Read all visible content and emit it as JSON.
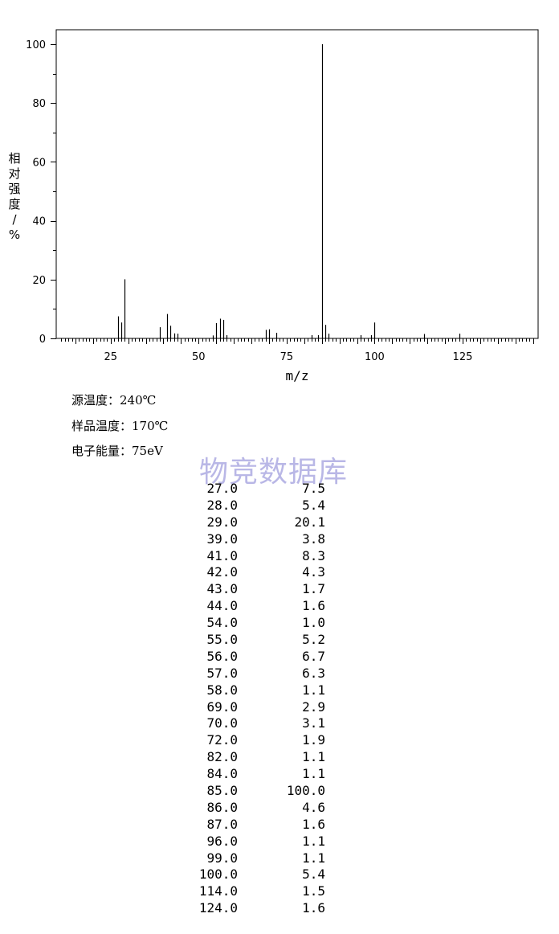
{
  "chart_data": {
    "type": "bar",
    "title": "",
    "xlabel": "m/z",
    "ylabel": "相对强度/%",
    "xlim": [
      10,
      146
    ],
    "ylim": [
      0,
      105
    ],
    "xticks": [
      25,
      50,
      75,
      100,
      125
    ],
    "yticks": [
      0,
      20,
      40,
      60,
      80,
      100
    ],
    "grid": false,
    "x": [
      27,
      28,
      29,
      39,
      41,
      42,
      43,
      44,
      54,
      55,
      56,
      57,
      58,
      69,
      70,
      72,
      82,
      84,
      85,
      86,
      87,
      96,
      99,
      100,
      114,
      124
    ],
    "values": [
      7.5,
      5.4,
      20.1,
      3.8,
      8.3,
      4.3,
      1.7,
      1.6,
      1.0,
      5.2,
      6.7,
      6.3,
      1.1,
      2.9,
      3.1,
      1.9,
      1.1,
      1.1,
      100.0,
      4.6,
      1.6,
      1.1,
      1.1,
      5.4,
      1.5,
      1.6
    ]
  },
  "axis": {
    "xlabel": "m/z",
    "ylabel_chars": [
      "相",
      "对",
      "强",
      "度",
      "/",
      "%"
    ]
  },
  "conditions": {
    "source_temp": "源温度：240℃",
    "sample_temp": "样品温度：170℃",
    "electron_energy": "电子能量：75eV"
  },
  "watermark": "物竞数据库",
  "peak_table": [
    [
      "27.0",
      "7.5"
    ],
    [
      "28.0",
      "5.4"
    ],
    [
      "29.0",
      "20.1"
    ],
    [
      "39.0",
      "3.8"
    ],
    [
      "41.0",
      "8.3"
    ],
    [
      "42.0",
      "4.3"
    ],
    [
      "43.0",
      "1.7"
    ],
    [
      "44.0",
      "1.6"
    ],
    [
      "54.0",
      "1.0"
    ],
    [
      "55.0",
      "5.2"
    ],
    [
      "56.0",
      "6.7"
    ],
    [
      "57.0",
      "6.3"
    ],
    [
      "58.0",
      "1.1"
    ],
    [
      "69.0",
      "2.9"
    ],
    [
      "70.0",
      "3.1"
    ],
    [
      "72.0",
      "1.9"
    ],
    [
      "82.0",
      "1.1"
    ],
    [
      "84.0",
      "1.1"
    ],
    [
      "85.0",
      "100.0"
    ],
    [
      "86.0",
      "4.6"
    ],
    [
      "87.0",
      "1.6"
    ],
    [
      "96.0",
      "1.1"
    ],
    [
      "99.0",
      "1.1"
    ],
    [
      "100.0",
      "5.4"
    ],
    [
      "114.0",
      "1.5"
    ],
    [
      "124.0",
      "1.6"
    ]
  ],
  "colors": {
    "ink": "#000000",
    "watermark": "#b9b7e6"
  }
}
